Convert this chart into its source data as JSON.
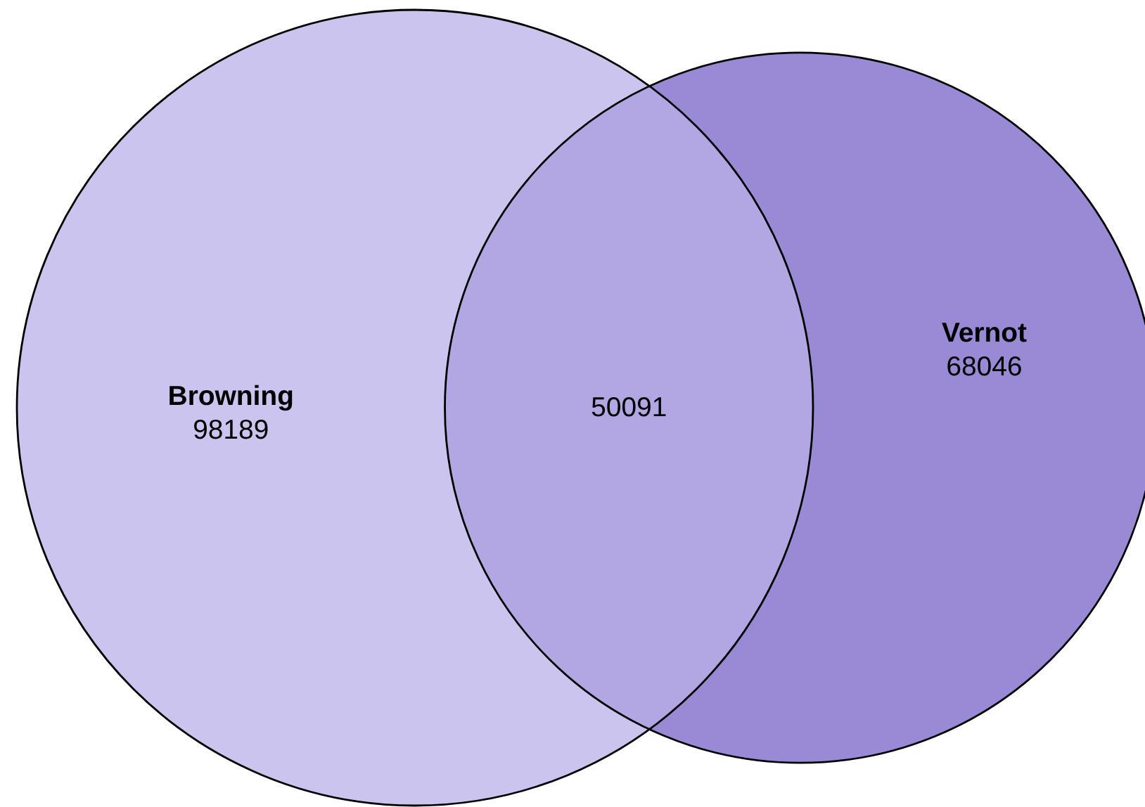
{
  "chart_data": {
    "type": "other",
    "categories": [
      "Browning",
      "Vernot"
    ],
    "values": [
      98189,
      68046
    ],
    "colors": [
      "#cbc4ee",
      "#9a8ad6"
    ],
    "data_labels": true,
    "annotations": [
      "50091"
    ]
  }
}
